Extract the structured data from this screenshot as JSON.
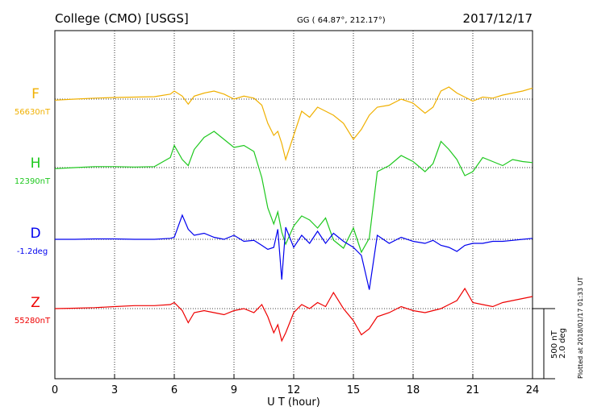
{
  "header": {
    "station": "College (CMO)  [USGS]",
    "coords": "GG ( 64.87°, 212.17°)",
    "date": "2017/12/17"
  },
  "chart_data": {
    "type": "line",
    "xlabel": "U T (hour)",
    "xlim": [
      0,
      24
    ],
    "xticks": [
      "0",
      "3",
      "6",
      "9",
      "12",
      "15",
      "18",
      "21",
      "24"
    ],
    "grid": true,
    "scale_label_1": "500 nT",
    "scale_label_2": "2.0 deg",
    "plot_note": "Plotted at 2018/01/17 01:33 UT",
    "series": [
      {
        "name": "F",
        "baseline_label": "56630nT",
        "color": "#f0b000",
        "baseline_y": 0,
        "x": [
          0,
          1,
          2,
          3,
          4,
          5,
          5.8,
          6,
          6.4,
          6.7,
          7,
          7.5,
          8,
          8.5,
          9,
          9.5,
          10,
          10.4,
          10.7,
          11,
          11.2,
          11.4,
          11.6,
          12,
          12.4,
          12.8,
          13.2,
          13.6,
          14,
          14.5,
          15,
          15.4,
          15.8,
          16.2,
          16.8,
          17.4,
          18,
          18.6,
          19,
          19.4,
          19.8,
          20.2,
          20.6,
          21,
          21.5,
          22,
          22.5,
          23,
          23.5,
          24
        ],
        "y": [
          -5,
          0,
          5,
          8,
          10,
          12,
          25,
          40,
          15,
          -25,
          15,
          30,
          40,
          25,
          0,
          15,
          5,
          -30,
          -120,
          -180,
          -160,
          -220,
          -300,
          -180,
          -60,
          -90,
          -40,
          -60,
          -80,
          -120,
          -200,
          -150,
          -80,
          -40,
          -30,
          0,
          -20,
          -70,
          -40,
          40,
          60,
          30,
          10,
          -10,
          10,
          5,
          20,
          30,
          40,
          55
        ]
      },
      {
        "name": "H",
        "baseline_label": "12390nT",
        "color": "#1ec81e",
        "baseline_y": 0,
        "x": [
          0,
          1,
          2,
          3,
          4,
          5,
          5.8,
          6,
          6.4,
          6.7,
          7,
          7.5,
          8,
          8.5,
          9,
          9.5,
          10,
          10.4,
          10.7,
          11,
          11.2,
          11.4,
          11.6,
          12,
          12.4,
          12.8,
          13.2,
          13.6,
          14,
          14.5,
          15,
          15.4,
          15.8,
          16.2,
          16.8,
          17.4,
          18,
          18.6,
          19,
          19.4,
          19.8,
          20.2,
          20.6,
          21,
          21.5,
          22,
          22.5,
          23,
          23.5,
          24
        ],
        "y": [
          -5,
          0,
          5,
          5,
          3,
          5,
          50,
          110,
          40,
          10,
          90,
          150,
          180,
          140,
          100,
          110,
          80,
          -50,
          -200,
          -280,
          -220,
          -320,
          -380,
          -290,
          -240,
          -260,
          -300,
          -250,
          -360,
          -400,
          -300,
          -420,
          -350,
          -20,
          10,
          60,
          30,
          -20,
          20,
          130,
          90,
          40,
          -40,
          -20,
          50,
          30,
          10,
          40,
          30,
          25
        ]
      },
      {
        "name": "D",
        "baseline_label": "-1.2deg",
        "color": "#0000ee",
        "baseline_y": 0,
        "x": [
          0,
          1,
          2,
          3,
          4,
          5,
          5.8,
          6,
          6.4,
          6.7,
          7,
          7.5,
          8,
          8.5,
          9,
          9.5,
          10,
          10.4,
          10.7,
          11,
          11.2,
          11.4,
          11.6,
          12,
          12.4,
          12.8,
          13.2,
          13.6,
          14,
          14.5,
          15,
          15.4,
          15.8,
          16.2,
          16.8,
          17.4,
          18,
          18.6,
          19,
          19.4,
          19.8,
          20.2,
          20.6,
          21,
          21.5,
          22,
          22.5,
          23,
          23.5,
          24
        ],
        "y": [
          0,
          0,
          2,
          2,
          0,
          0,
          5,
          10,
          120,
          50,
          20,
          30,
          10,
          0,
          20,
          -10,
          -5,
          -30,
          -50,
          -40,
          50,
          -200,
          60,
          -40,
          20,
          -20,
          40,
          -20,
          30,
          -10,
          -40,
          -80,
          -250,
          20,
          -20,
          10,
          -10,
          -20,
          -5,
          -30,
          -40,
          -60,
          -30,
          -20,
          -20,
          -10,
          -10,
          -5,
          0,
          5
        ]
      },
      {
        "name": "Z",
        "baseline_label": "55280nT",
        "color": "#ee0000",
        "baseline_y": 0,
        "x": [
          0,
          1,
          2,
          3,
          4,
          5,
          5.8,
          6,
          6.4,
          6.7,
          7,
          7.5,
          8,
          8.5,
          9,
          9.5,
          10,
          10.4,
          10.7,
          11,
          11.2,
          11.4,
          11.6,
          12,
          12.4,
          12.8,
          13.2,
          13.6,
          14,
          14.5,
          15,
          15.4,
          15.8,
          16.2,
          16.8,
          17.4,
          18,
          18.6,
          19,
          19.4,
          19.8,
          20.2,
          20.6,
          21,
          21.5,
          22,
          22.5,
          23,
          23.5,
          24
        ],
        "y": [
          0,
          2,
          5,
          10,
          15,
          15,
          20,
          30,
          -10,
          -70,
          -20,
          -10,
          -20,
          -30,
          -10,
          0,
          -20,
          20,
          -40,
          -120,
          -80,
          -160,
          -120,
          -20,
          20,
          0,
          30,
          10,
          80,
          0,
          -60,
          -130,
          -100,
          -40,
          -20,
          10,
          -10,
          -20,
          -10,
          0,
          20,
          40,
          100,
          30,
          20,
          10,
          30,
          40,
          50,
          60
        ]
      }
    ]
  }
}
